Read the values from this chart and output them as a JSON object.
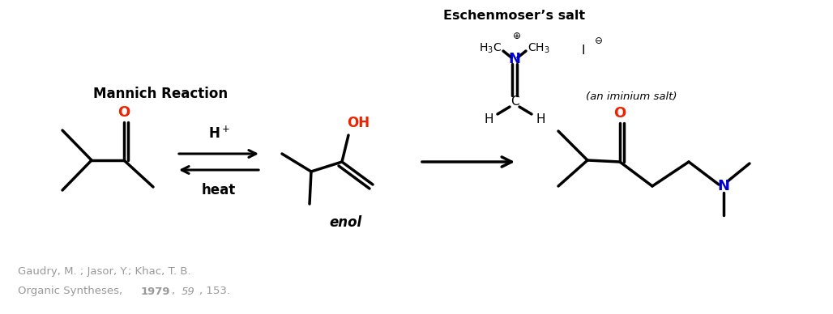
{
  "title": "Eschenmoser’s salt",
  "mannich_label": "Mannich Reaction",
  "citation_line1": "Gaudry, M. ; Jasor, Y.; Khac, T. B.",
  "bg_color": "#ffffff",
  "black": "#000000",
  "red": "#ee2200",
  "blue": "#0000cc",
  "gray": "#999999",
  "line_width": 2.5,
  "figw": 10.28,
  "figh": 3.88
}
